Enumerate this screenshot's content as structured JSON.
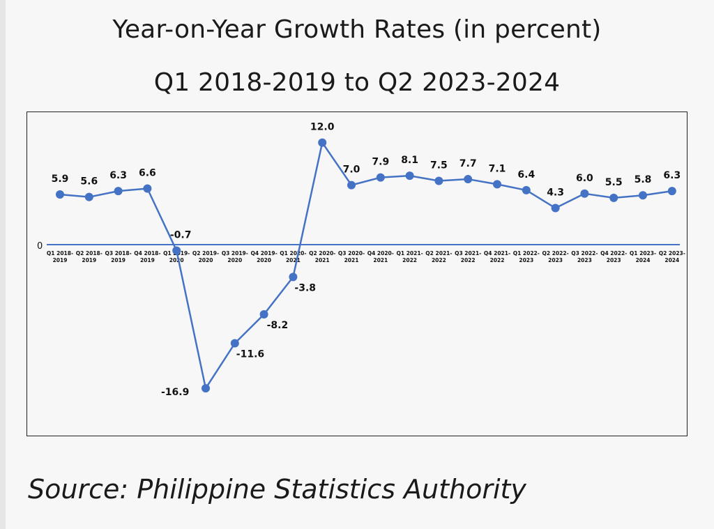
{
  "header": {
    "title": "Year-on-Year Growth Rates (in percent)",
    "subtitle": "Q1 2018-2019 to Q2 2023-2024"
  },
  "footer": {
    "source": "Source: Philippine Statistics Authority"
  },
  "colors": {
    "line": "#4472c4",
    "text": "#111111"
  },
  "chart_data": {
    "type": "line",
    "title": "Year-on-Year Growth Rates (in percent)",
    "subtitle": "Q1 2018-2019 to Q2 2023-2024",
    "zero_label": "0",
    "categories": [
      [
        "Q1 2018-",
        "2019"
      ],
      [
        "Q2 2018-",
        "2019"
      ],
      [
        "Q3 2018-",
        "2019"
      ],
      [
        "Q4 2018-",
        "2019"
      ],
      [
        "Q1 2019-",
        "2020"
      ],
      [
        "Q2 2019-",
        "2020"
      ],
      [
        "Q3 2019-",
        "2020"
      ],
      [
        "Q4 2019-",
        "2020"
      ],
      [
        "Q1 2020-",
        "2021"
      ],
      [
        "Q2 2020-",
        "2021"
      ],
      [
        "Q3 2020-",
        "2021"
      ],
      [
        "Q4 2020-",
        "2021"
      ],
      [
        "Q1 2021-",
        "2022"
      ],
      [
        "Q2 2021-",
        "2022"
      ],
      [
        "Q3 2021-",
        "2022"
      ],
      [
        "Q4 2021-",
        "2022"
      ],
      [
        "Q1 2022-",
        "2023"
      ],
      [
        "Q2 2022-",
        "2023"
      ],
      [
        "Q3 2022-",
        "2023"
      ],
      [
        "Q4 2022-",
        "2023"
      ],
      [
        "Q1 2023-",
        "2024"
      ],
      [
        "Q2 2023-",
        "2024"
      ]
    ],
    "series": [
      {
        "values": [
          5.9,
          5.6,
          6.3,
          6.6,
          -0.7,
          -16.9,
          -11.6,
          -8.2,
          -3.8,
          12.0,
          7.0,
          7.9,
          8.1,
          7.5,
          7.7,
          7.1,
          6.4,
          4.3,
          6.0,
          5.5,
          5.8,
          6.3
        ],
        "labels": [
          "5.9",
          "5.6",
          "6.3",
          "6.6",
          "-0.7",
          "-16.9",
          "-11.6",
          "-8.2",
          "-3.8",
          "12.0",
          "7.0",
          "7.9",
          "8.1",
          "7.5",
          "7.7",
          "7.1",
          "6.4",
          "4.3",
          "6.0",
          "5.5",
          "5.8",
          "6.3"
        ]
      }
    ],
    "ylim": [
      -20,
      14
    ],
    "grid": false,
    "legend": "none"
  }
}
